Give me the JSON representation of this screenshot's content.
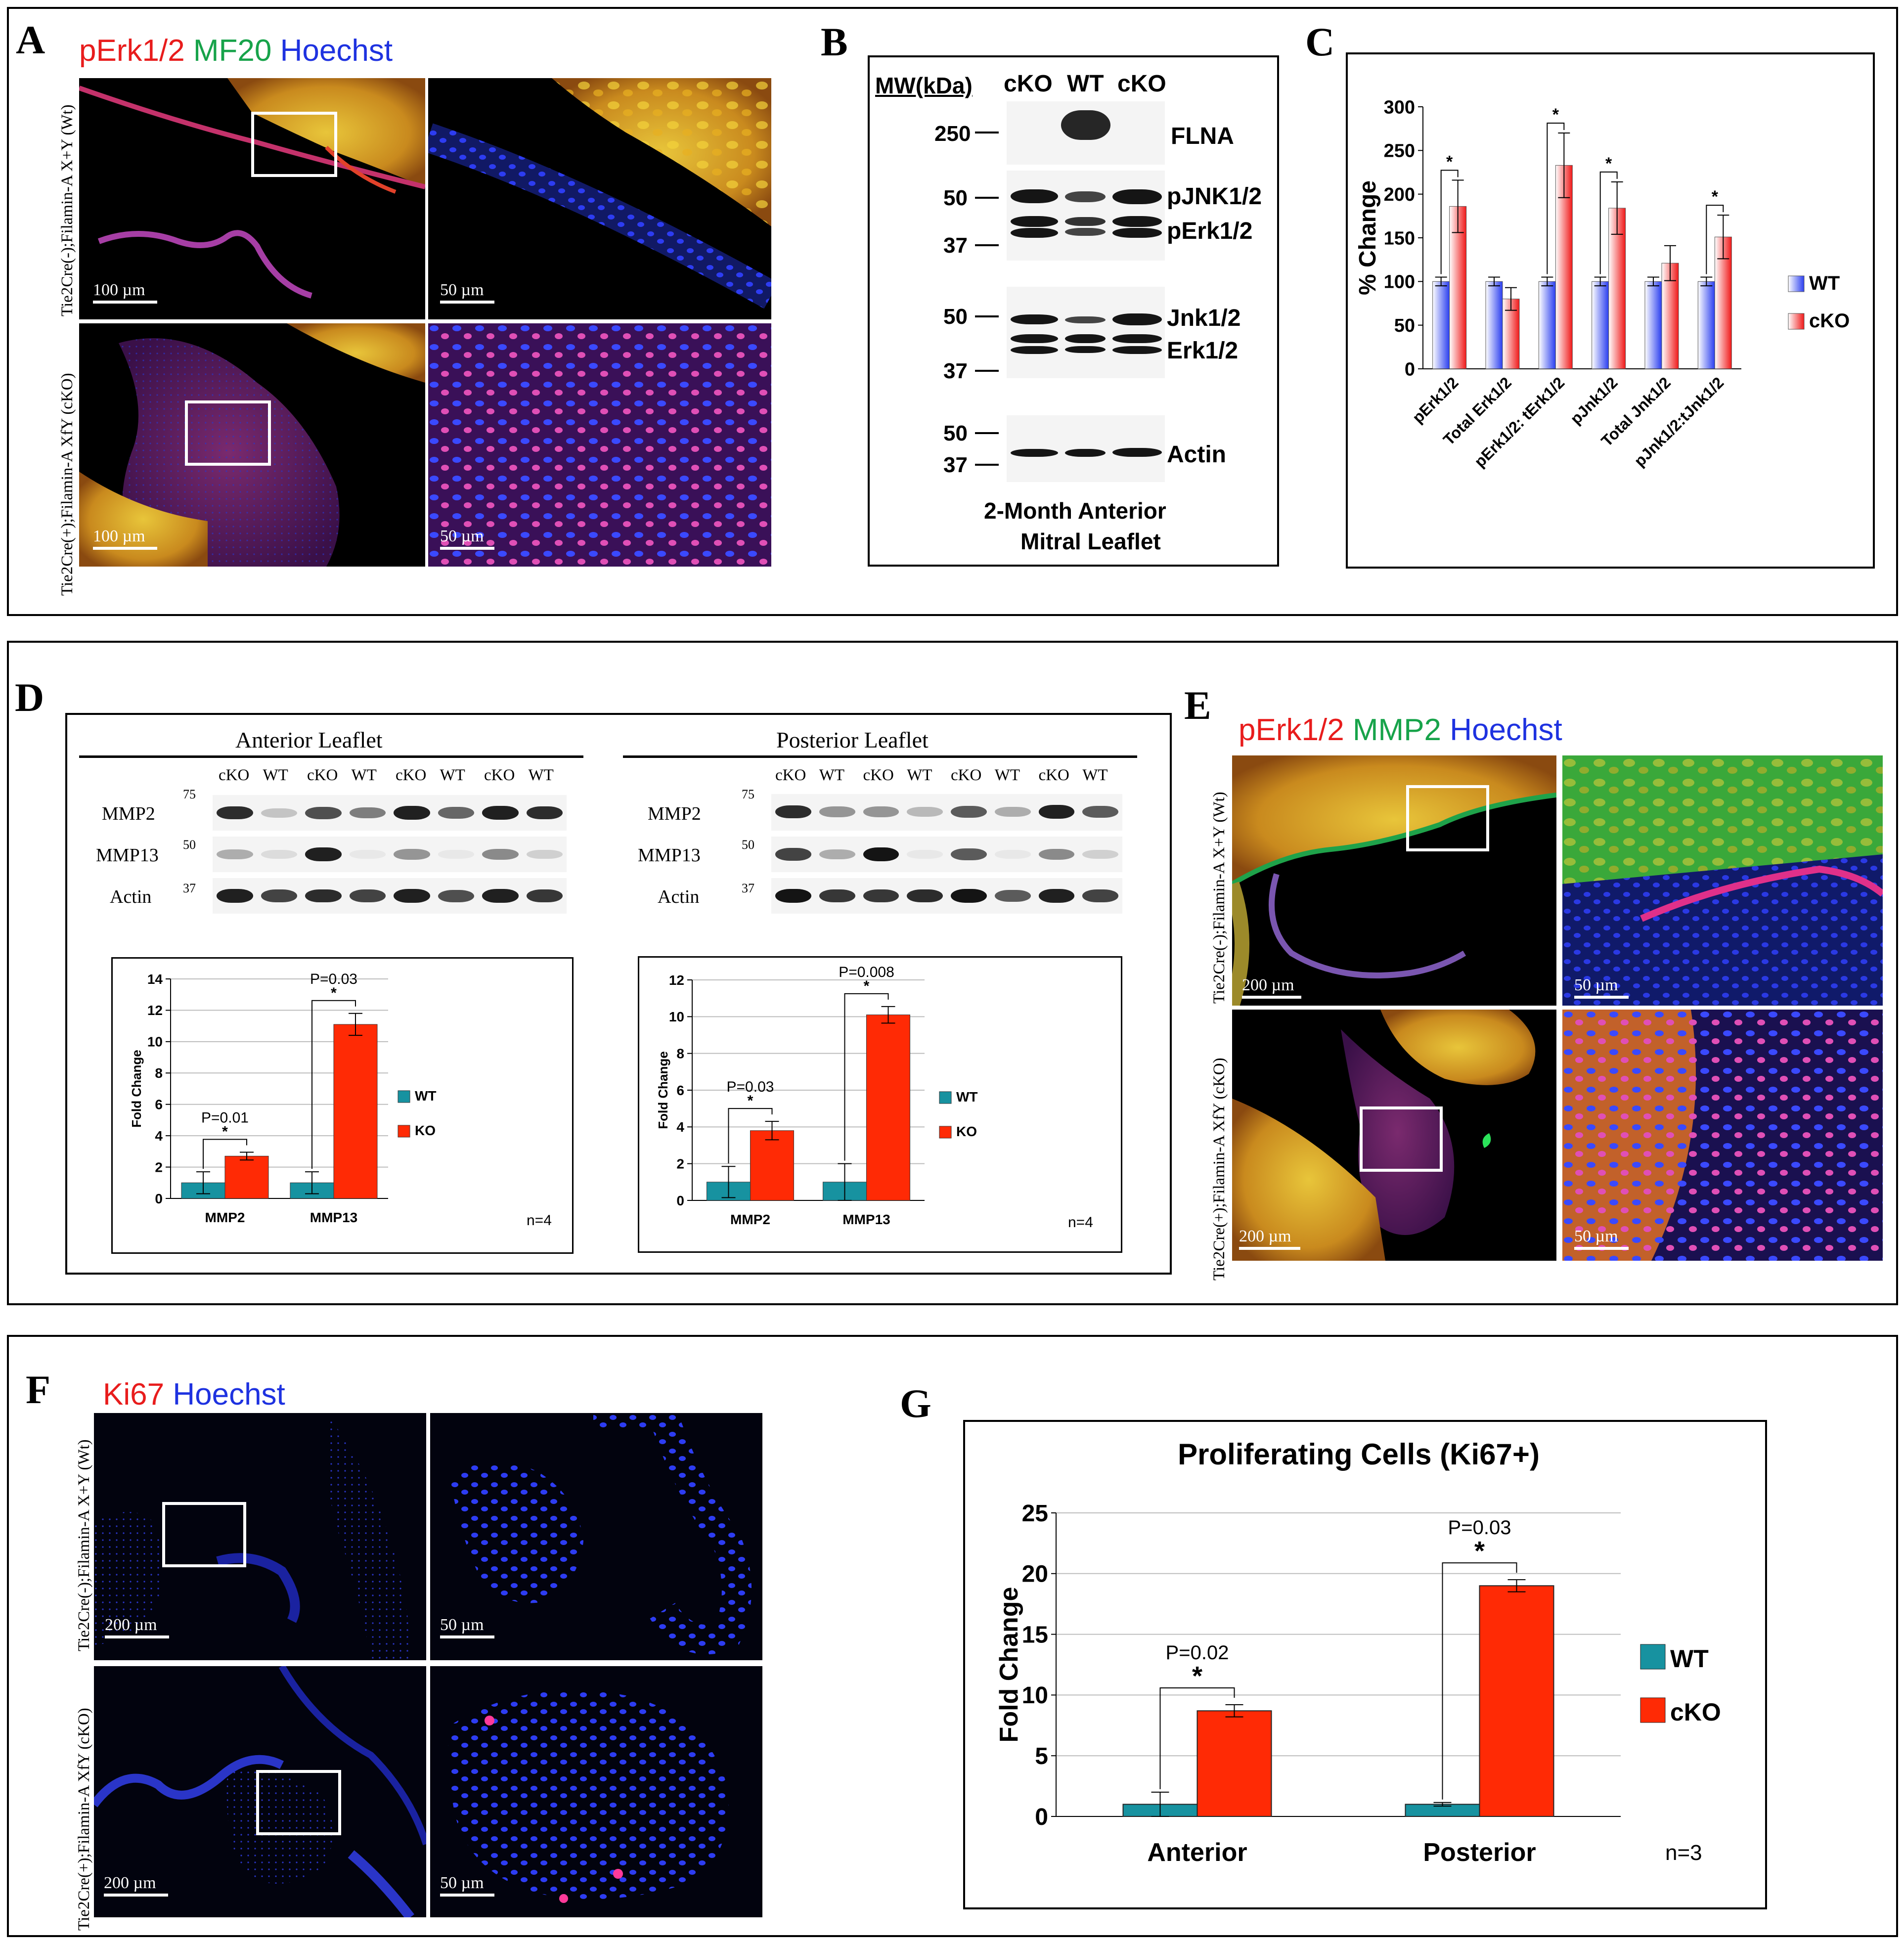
{
  "panels": {
    "A": {
      "label": "A",
      "stains": [
        {
          "text": "pErk1/2",
          "color": "#e81c1c"
        },
        {
          "text": "MF20",
          "color": "#17a34a"
        },
        {
          "text": "Hoechst",
          "color": "#1e32e0"
        }
      ],
      "row_labels": [
        "Tie2Cre(-);Filamin-A X+Y (Wt)",
        "Tie2Cre(+);Filamin-A XfY (cKO)"
      ],
      "scales": [
        "100 µm",
        "50 µm",
        "100 µm",
        "50 µm"
      ]
    },
    "B": {
      "label": "B",
      "mw_header": "MW(kDa)",
      "lanes": [
        "cKO",
        "WT",
        "cKO"
      ],
      "mw_markers": [
        "250",
        "50",
        "37",
        "50",
        "37",
        "50",
        "37"
      ],
      "bands": [
        "FLNA",
        "pJNK1/2",
        "pErk1/2",
        "Jnk1/2",
        "Erk1/2",
        "Actin"
      ],
      "caption": [
        "2-Month Anterior",
        "Mitral Leaflet"
      ]
    },
    "C": {
      "label": "C",
      "legend": [
        "WT",
        "cKO"
      ]
    },
    "D": {
      "label": "D",
      "blot_titles": [
        "Anterior Leaflet",
        "Posterior Leaflet"
      ],
      "lanes": [
        "cKO",
        "WT",
        "cKO",
        "WT",
        "cKO",
        "WT",
        "cKO",
        "WT"
      ],
      "mw_markers": [
        "75",
        "50",
        "37"
      ],
      "rows": [
        "MMP2",
        "MMP13",
        "Actin"
      ],
      "legend": [
        "WT",
        "KO"
      ]
    },
    "E": {
      "label": "E",
      "stains": [
        {
          "text": "pErk1/2",
          "color": "#e81c1c"
        },
        {
          "text": "MMP2",
          "color": "#17a34a"
        },
        {
          "text": "Hoechst",
          "color": "#1e32e0"
        }
      ],
      "row_labels": [
        "Tie2Cre(-);Filamin-A X+Y (Wt)",
        "Tie2Cre(+);Filamin-A XfY (cKO)"
      ],
      "scales": [
        "200 µm",
        "50 µm",
        "200 µm",
        "50 µm"
      ]
    },
    "F": {
      "label": "F",
      "stains": [
        {
          "text": "Ki67",
          "color": "#e81c1c"
        },
        {
          "text": "Hoechst",
          "color": "#1e32e0"
        }
      ],
      "row_labels": [
        "Tie2Cre(-);Filamin-A X+Y (Wt)",
        "Tie2Cre(+);Filamin-A XfY (cKO)"
      ],
      "scales": [
        "200 µm",
        "50 µm",
        "200 µm",
        "50 µm"
      ]
    },
    "G": {
      "label": "G",
      "legend": [
        "WT",
        "cKO"
      ]
    }
  },
  "chart_data": [
    {
      "id": "C",
      "type": "bar",
      "ylabel": "% Change",
      "ylim": [
        0,
        300
      ],
      "yticks": [
        0,
        50,
        100,
        150,
        200,
        250,
        300
      ],
      "categories": [
        "pErk1/2",
        "Total Erk1/2",
        "pErk1/2: tErk1/2",
        "pJnk1/2",
        "Total Jnk1/2",
        "pJnk1/2:tJnk1/2"
      ],
      "series": [
        {
          "name": "WT",
          "values": [
            100,
            100,
            100,
            100,
            100,
            100
          ],
          "errors": [
            5,
            5,
            5,
            5,
            5,
            5
          ]
        },
        {
          "name": "cKO",
          "values": [
            186,
            80,
            233,
            184,
            121,
            151
          ],
          "errors": [
            30,
            13,
            37,
            30,
            20,
            25
          ]
        }
      ],
      "significance": [
        "*",
        "",
        "*",
        "*",
        "",
        "*"
      ],
      "legend_position": "right"
    },
    {
      "id": "D-anterior",
      "type": "bar",
      "ylabel": "Fold Change",
      "ylim": [
        0,
        14
      ],
      "yticks": [
        0,
        2,
        4,
        6,
        8,
        10,
        12,
        14
      ],
      "categories": [
        "MMP2",
        "MMP13"
      ],
      "series": [
        {
          "name": "WT",
          "values": [
            1,
            1
          ],
          "errors": [
            0.7,
            0.7
          ]
        },
        {
          "name": "KO",
          "values": [
            2.7,
            11.1
          ],
          "errors": [
            0.25,
            0.7
          ]
        }
      ],
      "annotations": [
        {
          "p": "P=0.01",
          "star": "*"
        },
        {
          "p": "P=0.03",
          "star": "*"
        }
      ],
      "note": "n=4",
      "legend_position": "right"
    },
    {
      "id": "D-posterior",
      "type": "bar",
      "ylabel": "Fold Change",
      "ylim": [
        0,
        12
      ],
      "yticks": [
        0,
        2,
        4,
        6,
        8,
        10,
        12
      ],
      "categories": [
        "MMP2",
        "MMP13"
      ],
      "series": [
        {
          "name": "WT",
          "values": [
            1,
            1
          ],
          "errors": [
            0.85,
            1.0
          ]
        },
        {
          "name": "KO",
          "values": [
            3.8,
            10.1
          ],
          "errors": [
            0.5,
            0.45
          ]
        }
      ],
      "annotations": [
        {
          "p": "P=0.03",
          "star": "*"
        },
        {
          "p": "P=0.008",
          "star": "*"
        }
      ],
      "note": "n=4",
      "legend_position": "right"
    },
    {
      "id": "G",
      "type": "bar",
      "title": "Proliferating Cells (Ki67+)",
      "ylabel": "Fold Change",
      "ylim": [
        0,
        25
      ],
      "yticks": [
        0,
        5,
        10,
        15,
        20,
        25
      ],
      "categories": [
        "Anterior",
        "Posterior"
      ],
      "series": [
        {
          "name": "WT",
          "values": [
            1,
            1
          ],
          "errors": [
            1.0,
            0.15
          ]
        },
        {
          "name": "cKO",
          "values": [
            8.7,
            19.0
          ],
          "errors": [
            0.5,
            0.5
          ]
        }
      ],
      "annotations": [
        {
          "p": "P=0.02",
          "star": "*"
        },
        {
          "p": "P=0.03",
          "star": "*"
        }
      ],
      "note": "n=3",
      "legend_position": "right"
    }
  ]
}
